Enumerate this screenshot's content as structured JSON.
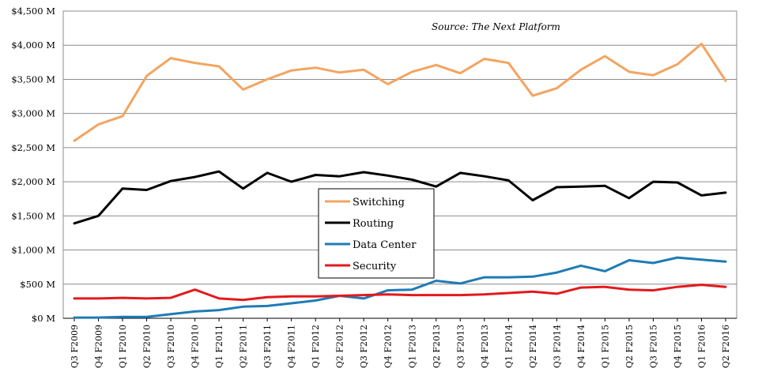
{
  "chart_data": {
    "type": "line",
    "source": "Source: The Next Platform",
    "ylim": [
      0,
      4500
    ],
    "y_ticks": [
      "$0 M",
      "$500 M",
      "$1,000 M",
      "$1,500 M",
      "$2,000 M",
      "$2,500 M",
      "$3,000 M",
      "$3,500 M",
      "$4,000 M",
      "$4,500 M"
    ],
    "grid": "horizontal",
    "legend_position": "center",
    "categories": [
      "Q3 F2009",
      "Q4 F2009",
      "Q1 F2010",
      "Q2 F2010",
      "Q3 F2010",
      "Q4 F2010",
      "Q1 F2011",
      "Q2 F2011",
      "Q3 F2011",
      "Q4 F2011",
      "Q1 F2012",
      "Q2 F2012",
      "Q3 F2012",
      "Q4 F2012",
      "Q1 F2013",
      "Q2 F2013",
      "Q3 F2013",
      "Q4 F2013",
      "Q1 F2014",
      "Q2 F2014",
      "Q3 F2014",
      "Q4 F2014",
      "Q1 F2015",
      "Q2 F2015",
      "Q3 F2015",
      "Q4 F2015",
      "Q1 F2016",
      "Q2 F2016"
    ],
    "series": [
      {
        "name": "Switching",
        "color": "#F4A460",
        "values": [
          2600,
          2840,
          2960,
          3550,
          3810,
          3740,
          3690,
          3350,
          3500,
          3630,
          3670,
          3600,
          3640,
          3430,
          3610,
          3710,
          3590,
          3800,
          3740,
          3260,
          3370,
          3640,
          3840,
          3610,
          3560,
          3720,
          4020,
          3480
        ]
      },
      {
        "name": "Routing",
        "color": "#000000",
        "values": [
          1390,
          1500,
          1900,
          1880,
          2010,
          2070,
          2150,
          1900,
          2130,
          2000,
          2100,
          2080,
          2140,
          2090,
          2030,
          1930,
          2130,
          2080,
          2020,
          1730,
          1920,
          1930,
          1940,
          1760,
          2000,
          1990,
          1800,
          1840
        ]
      },
      {
        "name": "Data Center",
        "color": "#1F7BB6",
        "values": [
          10,
          10,
          20,
          20,
          60,
          100,
          120,
          170,
          180,
          220,
          260,
          330,
          290,
          410,
          420,
          550,
          510,
          600,
          600,
          610,
          670,
          770,
          690,
          850,
          810,
          890,
          860,
          830
        ]
      },
      {
        "name": "Security",
        "color": "#E31A1C",
        "values": [
          290,
          290,
          300,
          290,
          300,
          420,
          290,
          270,
          310,
          320,
          320,
          330,
          340,
          350,
          340,
          340,
          340,
          350,
          370,
          390,
          360,
          450,
          460,
          420,
          410,
          460,
          490,
          460
        ]
      }
    ]
  }
}
